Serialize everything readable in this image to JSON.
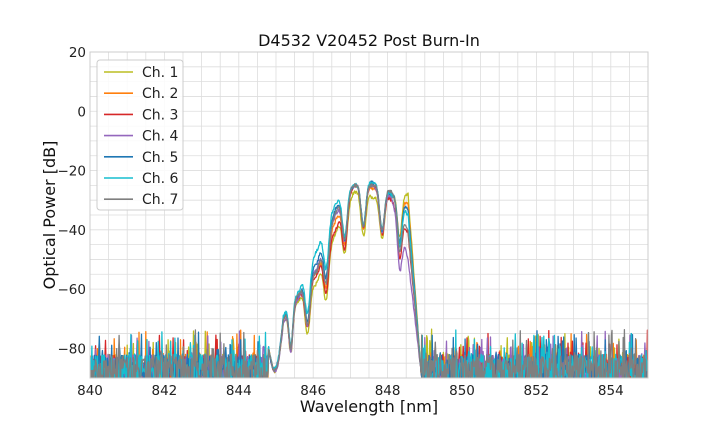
{
  "chart_data": {
    "type": "line",
    "title": "D4532 V20452 Post Burn-In",
    "xlabel": "Wavelength [nm]",
    "ylabel": "Optical Power [dB]",
    "xlim": [
      840,
      855
    ],
    "ylim": [
      -90,
      20
    ],
    "xticks": [
      840,
      842,
      844,
      846,
      848,
      850,
      852,
      854
    ],
    "yticks": [
      20,
      0,
      -20,
      -40,
      -60,
      -80
    ],
    "grid": true,
    "minor_grid": true,
    "legend_position": "top-left",
    "noise_floor_db": -80,
    "passband_nm": [
      844.8,
      848.9
    ],
    "series": [
      {
        "name": "Ch. 1",
        "color": "#bcbd22",
        "peaks": [
          {
            "x": 845.2,
            "y": -71
          },
          {
            "x": 845.6,
            "y": -64
          },
          {
            "x": 846.1,
            "y": -58
          },
          {
            "x": 846.6,
            "y": -41
          },
          {
            "x": 847.1,
            "y": -27
          },
          {
            "x": 847.6,
            "y": -29
          },
          {
            "x": 848.1,
            "y": -29
          },
          {
            "x": 848.55,
            "y": -28
          }
        ]
      },
      {
        "name": "Ch. 2",
        "color": "#ff7f0e",
        "peaks": [
          {
            "x": 845.2,
            "y": -70
          },
          {
            "x": 845.6,
            "y": -63
          },
          {
            "x": 846.1,
            "y": -54
          },
          {
            "x": 846.6,
            "y": -37
          },
          {
            "x": 847.1,
            "y": -25
          },
          {
            "x": 847.6,
            "y": -26
          },
          {
            "x": 848.1,
            "y": -29
          },
          {
            "x": 848.55,
            "y": -31
          }
        ]
      },
      {
        "name": "Ch. 3",
        "color": "#d62728",
        "peaks": [
          {
            "x": 845.2,
            "y": -70
          },
          {
            "x": 845.6,
            "y": -63
          },
          {
            "x": 846.1,
            "y": -55
          },
          {
            "x": 846.6,
            "y": -40
          },
          {
            "x": 847.1,
            "y": -25
          },
          {
            "x": 847.6,
            "y": -25
          },
          {
            "x": 848.1,
            "y": -30
          },
          {
            "x": 848.55,
            "y": -41
          }
        ]
      },
      {
        "name": "Ch. 4",
        "color": "#9467bd",
        "peaks": [
          {
            "x": 845.2,
            "y": -71
          },
          {
            "x": 845.6,
            "y": -63
          },
          {
            "x": 846.1,
            "y": -53
          },
          {
            "x": 846.6,
            "y": -35
          },
          {
            "x": 847.1,
            "y": -25
          },
          {
            "x": 847.6,
            "y": -25
          },
          {
            "x": 848.1,
            "y": -29
          },
          {
            "x": 848.55,
            "y": -50
          }
        ]
      },
      {
        "name": "Ch. 5",
        "color": "#1f77b4",
        "peaks": [
          {
            "x": 845.2,
            "y": -69
          },
          {
            "x": 845.6,
            "y": -62
          },
          {
            "x": 846.1,
            "y": -51
          },
          {
            "x": 846.6,
            "y": -33
          },
          {
            "x": 847.1,
            "y": -25
          },
          {
            "x": 847.6,
            "y": -24
          },
          {
            "x": 848.1,
            "y": -28
          },
          {
            "x": 848.55,
            "y": -33
          }
        ]
      },
      {
        "name": "Ch. 6",
        "color": "#17becf",
        "peaks": [
          {
            "x": 845.2,
            "y": -69
          },
          {
            "x": 845.6,
            "y": -61
          },
          {
            "x": 846.1,
            "y": -47
          },
          {
            "x": 846.6,
            "y": -31
          },
          {
            "x": 847.1,
            "y": -25
          },
          {
            "x": 847.6,
            "y": -24
          },
          {
            "x": 848.1,
            "y": -28
          },
          {
            "x": 848.55,
            "y": -35
          }
        ]
      },
      {
        "name": "Ch. 7",
        "color": "#7f7f7f",
        "peaks": [
          {
            "x": 845.2,
            "y": -70
          },
          {
            "x": 845.6,
            "y": -62
          },
          {
            "x": 846.1,
            "y": -54
          },
          {
            "x": 846.6,
            "y": -34
          },
          {
            "x": 847.1,
            "y": -25
          },
          {
            "x": 847.6,
            "y": -25
          },
          {
            "x": 848.1,
            "y": -27
          },
          {
            "x": 848.55,
            "y": -40
          }
        ]
      }
    ]
  }
}
